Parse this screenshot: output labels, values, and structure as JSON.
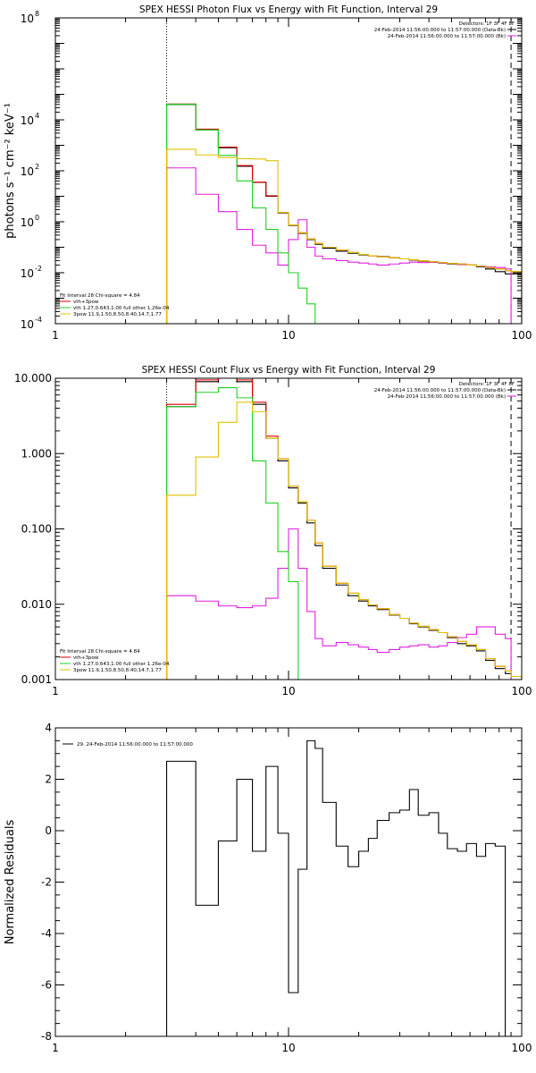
{
  "chart_data": [
    {
      "type": "line",
      "title": "SPEX HESSI Photon Flux vs Energy with Fit Function, Interval 29",
      "ylabel": "photons s⁻¹ cm⁻² keV⁻¹",
      "xscale": "log",
      "yscale": "log",
      "xlim": [
        1,
        100
      ],
      "ylim": [
        0.0001,
        100000000
      ],
      "xticks": [
        "1",
        "10",
        "100"
      ],
      "yticks": [
        {
          "v": 0.0001,
          "m": "10",
          "e": "-4"
        },
        {
          "v": 0.01,
          "m": "10",
          "e": "-2"
        },
        {
          "v": 1,
          "m": "10",
          "e": "0"
        },
        {
          "v": 100,
          "m": "10",
          "e": "2"
        },
        {
          "v": 10000,
          "m": "10",
          "e": "4"
        },
        {
          "v": 100000000,
          "m": "10",
          "e": "8"
        }
      ],
      "vlines": [
        {
          "x": 3,
          "style": "dotted"
        },
        {
          "x": 90,
          "style": "dashed"
        }
      ],
      "legend_tr": [
        "Detectors: 1F 3F 4F 8F",
        "24-Feb-2014 11:56:00.000 to 11:57:00.000 (Data-Bk)",
        "24-Feb-2014 11:56:00.000 to 11:57:00.000 (Bk)"
      ],
      "legend_bl": [
        "Fit Interval 28   Chi-square = 4.84",
        "vth+3pow",
        "vth 1.27,0.643,1.00  full other 1.26e-04",
        "3pow 11.9,1.50,8.50,8.40,14.7,1.77"
      ],
      "edges": [
        3,
        4,
        5,
        6,
        7,
        8,
        9,
        10,
        11,
        12,
        13,
        14,
        16,
        18,
        20,
        22,
        24,
        27,
        30,
        33,
        36,
        40,
        44,
        48,
        53,
        58,
        64,
        70,
        77,
        85,
        90,
        100
      ],
      "series": [
        {
          "name": "Data-Bk",
          "color": "#000000",
          "values": [
            40000.0,
            4000.0,
            800,
            150,
            35,
            10,
            2.2,
            0.72,
            0.35,
            0.2,
            0.13,
            0.092,
            0.07,
            0.058,
            0.05,
            0.046,
            0.043,
            0.039,
            0.035,
            0.031,
            0.028,
            0.026,
            0.024,
            0.022,
            0.021,
            0.02,
            0.017,
            0.014,
            0.011,
            0.009,
            0.009
          ]
        },
        {
          "name": "Bk",
          "color": "#e020e0",
          "values": [
            130,
            12,
            2.5,
            0.5,
            0.12,
            0.06,
            0.02,
            0.2,
            1.2,
            0.1,
            0.045,
            0.035,
            0.03,
            0.026,
            0.024,
            0.022,
            0.02,
            0.022,
            0.024,
            0.026,
            0.025,
            0.026,
            0.024,
            0.023,
            0.021,
            0.02,
            0.018,
            0.017,
            0.016,
            0.014,
            0.0001
          ]
        },
        {
          "name": "vth+3pow",
          "color": "#e00000",
          "values": [
            42000,
            4300,
            850,
            160,
            36,
            10.5,
            2.3,
            0.75,
            0.37,
            0.21,
            0.14,
            0.1,
            0.077,
            0.062,
            0.052,
            0.046,
            0.042,
            0.039,
            0.035,
            0.032,
            0.029,
            0.027,
            0.025,
            0.023,
            0.022,
            0.02,
            0.018,
            0.016,
            0.014,
            0.012,
            0.011
          ]
        },
        {
          "name": "vth",
          "color": "#20d020",
          "values": [
            41000,
            4000,
            400,
            40,
            3.5,
            0.5,
            0.06,
            0.01,
            0.0025,
            0.0006,
            0.0001
          ]
        },
        {
          "name": "3pow",
          "color": "#e0c000",
          "values": [
            700,
            420,
            330,
            300,
            290,
            250,
            2.3,
            0.75,
            0.37,
            0.21,
            0.14,
            0.1,
            0.077,
            0.062,
            0.052,
            0.046,
            0.042,
            0.039,
            0.035,
            0.032,
            0.029,
            0.027,
            0.025,
            0.023,
            0.022,
            0.02,
            0.018,
            0.016,
            0.014,
            0.012,
            0.011
          ]
        }
      ]
    },
    {
      "type": "line",
      "title": "SPEX HESSI Count Flux vs Energy with Fit Function, Interval 29",
      "ylabel": "",
      "xscale": "log",
      "yscale": "log",
      "xlim": [
        1,
        100
      ],
      "ylim": [
        0.001,
        10
      ],
      "xticks": [
        "1",
        "10",
        "100"
      ],
      "yticks": [
        {
          "v": 0.001,
          "t": "0.001"
        },
        {
          "v": 0.01,
          "t": "0.010"
        },
        {
          "v": 0.1,
          "t": "0.100"
        },
        {
          "v": 1,
          "t": "1.000"
        },
        {
          "v": 10,
          "t": "10.000"
        }
      ],
      "vlines": [
        {
          "x": 3,
          "style": "dotted"
        },
        {
          "x": 90,
          "style": "dashed"
        }
      ],
      "legend_tr": [
        "Detectors: 1F 3F 4F 8F",
        "24-Feb-2014 11:56:00.000 to 11:57:00.000 (Data-Bk)",
        "24-Feb-2014 11:56:00.000 to 11:57:00.000 (Bk)"
      ],
      "legend_bl": [
        "Fit Interval 28   Chi-square = 4.84",
        "vth+3pow",
        "vth 1.27,0.643,1.00  full other 1.26e-04",
        "3pow 11.9,1.50,8.50,8.40,14.7,1.77"
      ],
      "edges": [
        3,
        4,
        5,
        6,
        7,
        8,
        9,
        10,
        11,
        12,
        13,
        14,
        16,
        18,
        20,
        22,
        24,
        27,
        30,
        33,
        36,
        40,
        44,
        48,
        53,
        58,
        64,
        70,
        77,
        85,
        90,
        100
      ],
      "series": [
        {
          "name": "Data-Bk",
          "color": "#000000",
          "values": [
            4.2,
            9.0,
            10.0,
            9.0,
            4.5,
            1.6,
            0.8,
            0.35,
            0.22,
            0.12,
            0.06,
            0.03,
            0.018,
            0.013,
            0.011,
            0.0095,
            0.0085,
            0.0072,
            0.0065,
            0.0055,
            0.005,
            0.0045,
            0.0042,
            0.0036,
            0.003,
            0.0028,
            0.0024,
            0.0018,
            0.0014,
            0.0012,
            0.0011
          ]
        },
        {
          "name": "Bk",
          "color": "#e020e0",
          "values": [
            0.013,
            0.011,
            0.0095,
            0.009,
            0.0095,
            0.012,
            0.03,
            0.1,
            0.03,
            0.008,
            0.0035,
            0.0028,
            0.0031,
            0.0029,
            0.0027,
            0.0025,
            0.0023,
            0.0025,
            0.0027,
            0.0028,
            0.0029,
            0.0027,
            0.0028,
            0.0031,
            0.0036,
            0.004,
            0.005,
            0.005,
            0.004,
            0.0035,
            0.0009
          ]
        },
        {
          "name": "vth+3pow",
          "color": "#e00000",
          "values": [
            4.5,
            9.5,
            10.5,
            9.5,
            4.8,
            1.7,
            0.85,
            0.37,
            0.23,
            0.13,
            0.065,
            0.032,
            0.019,
            0.014,
            0.0115,
            0.0098,
            0.0087,
            0.0073,
            0.0065,
            0.0056,
            0.0051,
            0.0046,
            0.0042,
            0.0037,
            0.0032,
            0.0029,
            0.0025,
            0.0019,
            0.0015,
            0.0013,
            0.0011
          ]
        },
        {
          "name": "vth",
          "color": "#20d020",
          "values": [
            4.2,
            6.5,
            7.5,
            5.5,
            0.8,
            0.22,
            0.05,
            0.02,
            0.001
          ]
        },
        {
          "name": "3pow",
          "color": "#e0c000",
          "values": [
            0.28,
            0.9,
            2.6,
            4.8,
            3.6,
            1.6,
            0.85,
            0.37,
            0.23,
            0.13,
            0.065,
            0.032,
            0.019,
            0.014,
            0.0115,
            0.0098,
            0.0087,
            0.0073,
            0.0065,
            0.0056,
            0.0051,
            0.0046,
            0.0042,
            0.0037,
            0.0032,
            0.0029,
            0.0025,
            0.0019,
            0.0015,
            0.0013,
            0.0011
          ]
        }
      ]
    },
    {
      "type": "line",
      "title": "",
      "ylabel": "Normalized Residuals",
      "xscale": "log",
      "yscale": "linear",
      "xlim": [
        1,
        100
      ],
      "ylim": [
        -8,
        4
      ],
      "xticks": [
        "1",
        "10",
        "100"
      ],
      "yticks": [
        {
          "v": -8,
          "t": "-8"
        },
        {
          "v": -6,
          "t": "-6"
        },
        {
          "v": -4,
          "t": "-4"
        },
        {
          "v": -2,
          "t": "-2"
        },
        {
          "v": 0,
          "t": "0"
        },
        {
          "v": 2,
          "t": "2"
        },
        {
          "v": 4,
          "t": "4"
        }
      ],
      "legend_tl": [
        "29. 24-Feb-2014 11:56:00.000 to 11:57:00.000"
      ],
      "edges": [
        3,
        4,
        5,
        6,
        7,
        8,
        9,
        10,
        11,
        12,
        13,
        14,
        16,
        18,
        20,
        22,
        24,
        27,
        30,
        33,
        36,
        40,
        44,
        48,
        53,
        58,
        64,
        70,
        77,
        85,
        90
      ],
      "series": [
        {
          "name": "29. 24-Feb-2014 11:56:00.000 to 11:57:00.000",
          "color": "#000000",
          "values": [
            2.7,
            -2.9,
            -0.4,
            2.0,
            -0.8,
            2.5,
            -0.1,
            -6.3,
            -1.5,
            3.5,
            3.2,
            1.1,
            -0.6,
            -1.4,
            -0.8,
            -0.3,
            0.4,
            0.7,
            0.8,
            1.6,
            0.6,
            0.7,
            -0.1,
            -0.7,
            -0.8,
            -0.5,
            -1.0,
            -0.5,
            -0.6,
            -8.0
          ]
        }
      ]
    }
  ]
}
